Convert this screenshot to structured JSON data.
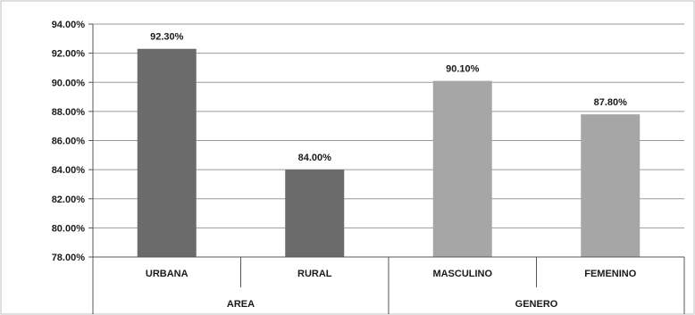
{
  "chart_data": {
    "type": "bar",
    "title": "",
    "xlabel": "",
    "ylabel": "",
    "ylim": [
      78,
      94
    ],
    "ytick_step": 2,
    "ytick_labels": [
      "78.00%",
      "80.00%",
      "82.00%",
      "84.00%",
      "86.00%",
      "88.00%",
      "90.00%",
      "92.00%",
      "94.00%"
    ],
    "grid": true,
    "legend": "none",
    "categories": [
      "URBANA",
      "RURAL",
      "MASCULINO",
      "FEMENINO"
    ],
    "groups": [
      {
        "label": "AREA",
        "members": [
          0,
          1
        ]
      },
      {
        "label": "GENERO",
        "members": [
          2,
          3
        ]
      }
    ],
    "values": [
      92.3,
      84.0,
      90.1,
      87.8
    ],
    "data_labels": [
      "92.30%",
      "84.00%",
      "90.10%",
      "87.80%"
    ],
    "bar_colors": [
      "#6b6b6b",
      "#6b6b6b",
      "#a6a6a6",
      "#a6a6a6"
    ]
  }
}
